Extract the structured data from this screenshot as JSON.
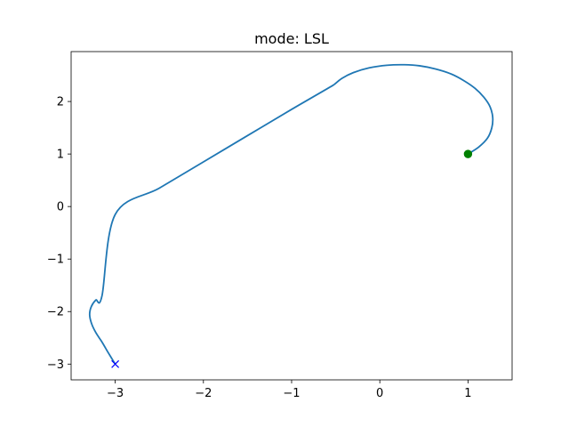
{
  "chart_data": {
    "type": "line",
    "title": "mode: LSL",
    "xlabel": "",
    "ylabel": "",
    "xlim": [
      -3.5,
      1.5
    ],
    "ylim": [
      -3.3,
      2.95
    ],
    "xticks": [
      -3,
      -2,
      -1,
      0,
      1
    ],
    "yticks": [
      -3,
      -2,
      -1,
      0,
      1,
      2
    ],
    "xtick_labels": [
      "−3",
      "−2",
      "−1",
      "0",
      "1"
    ],
    "ytick_labels": [
      "−3",
      "−2",
      "−1",
      "0",
      "1",
      "2"
    ],
    "grid": false,
    "series": [
      {
        "color": "#1f77b4",
        "x": [
          1.0,
          1.12,
          1.22,
          1.27,
          1.28,
          1.25,
          1.18,
          1.08,
          0.95,
          0.8,
          0.63,
          0.45,
          0.28,
          0.08,
          -0.12,
          -0.3,
          -0.43,
          -0.52,
          -0.6,
          -1.0,
          -1.5,
          -2.0,
          -2.5,
          -3.0,
          -3.15,
          -3.22,
          -3.27,
          -3.29,
          -3.27,
          -3.22,
          -3.15,
          -3.08,
          -3.0
        ],
        "y": [
          1.0,
          1.13,
          1.3,
          1.5,
          1.7,
          1.9,
          2.08,
          2.25,
          2.4,
          2.53,
          2.62,
          2.68,
          2.7,
          2.69,
          2.64,
          2.55,
          2.44,
          2.32,
          2.24,
          1.85,
          1.35,
          0.85,
          0.35,
          -0.15,
          -1.7,
          -1.78,
          -1.9,
          -2.05,
          -2.22,
          -2.4,
          -2.58,
          -2.78,
          -3.0
        ]
      }
    ],
    "markers": [
      {
        "x": 1,
        "y": 1,
        "shape": "circle",
        "color": "#008000"
      },
      {
        "x": -3,
        "y": -3,
        "shape": "x",
        "color": "#0000ff"
      }
    ]
  }
}
